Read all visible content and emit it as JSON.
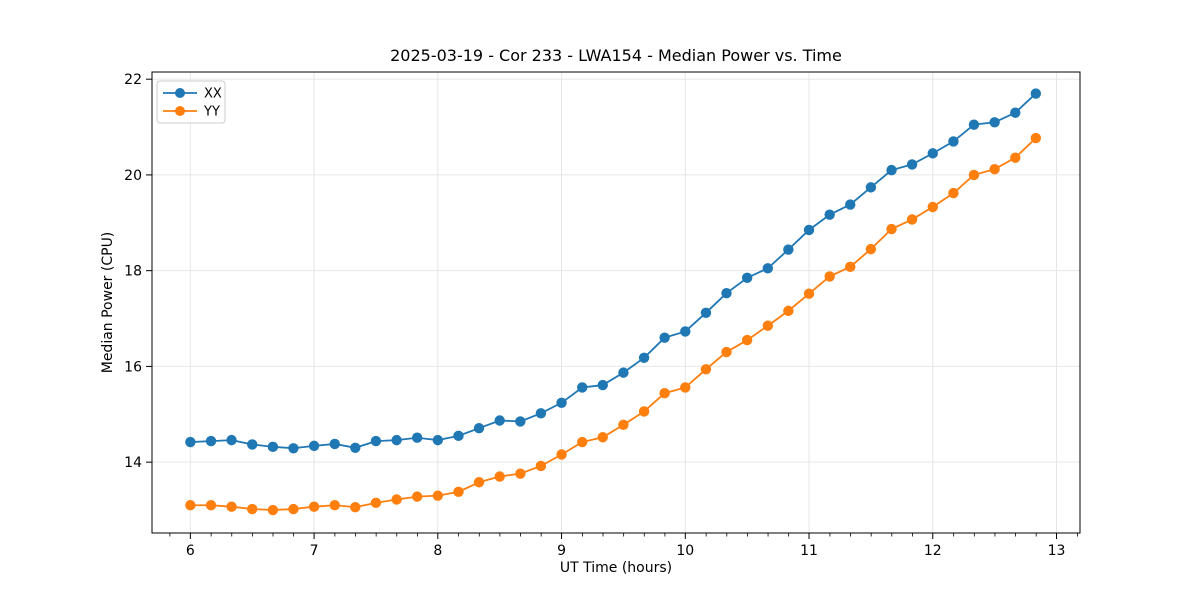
{
  "chart_data": {
    "type": "line",
    "title": "2025-03-19 - Cor 233 - LWA154 - Median Power vs. Time",
    "xlabel": "UT Time (hours)",
    "ylabel": "Median Power (CPU)",
    "xlim": [
      5.69,
      13.19
    ],
    "ylim": [
      12.52,
      22.15
    ],
    "xticks": [
      6,
      7,
      8,
      9,
      10,
      11,
      12,
      13
    ],
    "yticks": [
      14,
      16,
      18,
      20,
      22
    ],
    "x_minor_tick_step": 0.1667,
    "grid": true,
    "legend_position": "upper-left",
    "x": [
      6.0,
      6.167,
      6.333,
      6.5,
      6.667,
      6.833,
      7.0,
      7.167,
      7.333,
      7.5,
      7.667,
      7.833,
      8.0,
      8.167,
      8.333,
      8.5,
      8.667,
      8.833,
      9.0,
      9.167,
      9.333,
      9.5,
      9.667,
      9.833,
      10.0,
      10.167,
      10.333,
      10.5,
      10.667,
      10.833,
      11.0,
      11.167,
      11.333,
      11.5,
      11.667,
      11.833,
      12.0,
      12.167,
      12.333,
      12.5,
      12.667,
      12.833
    ],
    "series": [
      {
        "name": "XX",
        "color": "#1f77b4",
        "values": [
          14.42,
          14.44,
          14.46,
          14.37,
          14.32,
          14.29,
          14.34,
          14.38,
          14.3,
          14.44,
          14.46,
          14.51,
          14.46,
          14.55,
          14.71,
          14.87,
          14.85,
          15.02,
          15.24,
          15.56,
          15.61,
          15.87,
          16.18,
          16.6,
          16.73,
          17.12,
          17.53,
          17.85,
          18.05,
          18.44,
          18.85,
          19.17,
          19.38,
          19.74,
          20.1,
          20.22,
          20.45,
          20.7,
          21.05,
          21.1,
          21.3,
          21.7
        ]
      },
      {
        "name": "YY",
        "color": "#ff7f0e",
        "values": [
          13.1,
          13.1,
          13.07,
          13.02,
          13.0,
          13.02,
          13.07,
          13.1,
          13.06,
          13.15,
          13.22,
          13.28,
          13.3,
          13.38,
          13.58,
          13.7,
          13.76,
          13.92,
          14.16,
          14.42,
          14.52,
          14.78,
          15.06,
          15.44,
          15.56,
          15.94,
          16.3,
          16.55,
          16.85,
          17.16,
          17.52,
          17.88,
          18.08,
          18.45,
          18.87,
          19.07,
          19.33,
          19.62,
          20.0,
          20.12,
          20.36,
          20.77
        ]
      }
    ],
    "colors": {
      "grid": "#e6e6e6",
      "spine": "#000000",
      "legend_border": "#cccccc",
      "legend_bg": "rgba(255,255,255,0.85)"
    }
  }
}
